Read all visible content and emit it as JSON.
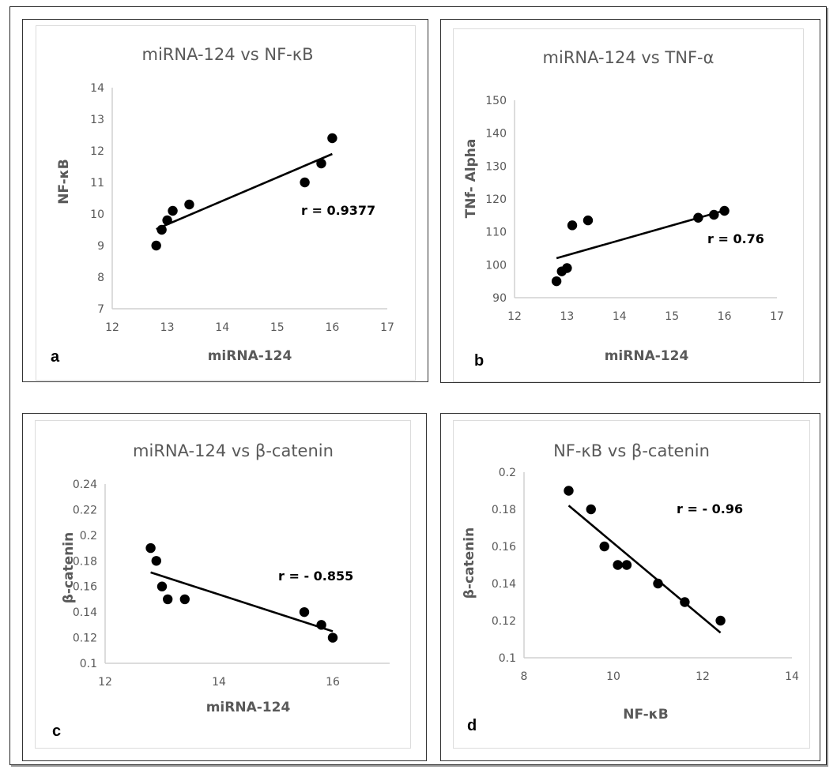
{
  "figure": {
    "colors": {
      "marker": "#000000",
      "trendline": "#000000",
      "axis": "#d0d0d0",
      "tick_text": "#595959",
      "title_text": "#595959"
    }
  },
  "chart_data": [
    {
      "panel": "a",
      "type": "scatter",
      "title": "miRNA-124 vs NF-κB",
      "xlabel": "miRNA-124",
      "ylabel": "NF-κB",
      "xlim": [
        12,
        17
      ],
      "ylim": [
        7,
        14
      ],
      "xticks": [
        12,
        13,
        14,
        15,
        16,
        17
      ],
      "yticks": [
        7,
        8,
        9,
        10,
        11,
        12,
        13,
        14
      ],
      "grid": false,
      "points": [
        {
          "x": 12.8,
          "y": 9.0
        },
        {
          "x": 12.9,
          "y": 9.5
        },
        {
          "x": 13.0,
          "y": 9.8
        },
        {
          "x": 13.1,
          "y": 10.1
        },
        {
          "x": 13.4,
          "y": 10.3
        },
        {
          "x": 15.5,
          "y": 11.0
        },
        {
          "x": 15.8,
          "y": 11.6
        },
        {
          "x": 16.0,
          "y": 12.4
        }
      ],
      "trendline": {
        "x0": 12.8,
        "y0": 9.52,
        "x1": 16.0,
        "y1": 11.9
      },
      "annotation": "r = 0.9377"
    },
    {
      "panel": "b",
      "type": "scatter",
      "title": "miRNA-124 vs TNF-α",
      "xlabel": "miRNA-124",
      "ylabel": "TNf- Alpha",
      "xlim": [
        12,
        17
      ],
      "ylim": [
        90,
        150
      ],
      "xticks": [
        12,
        13,
        14,
        15,
        16,
        17
      ],
      "yticks": [
        90,
        100,
        110,
        120,
        130,
        140,
        150
      ],
      "grid": false,
      "points": [
        {
          "x": 12.8,
          "y": 95
        },
        {
          "x": 12.9,
          "y": 98
        },
        {
          "x": 13.0,
          "y": 99
        },
        {
          "x": 13.1,
          "y": 112
        },
        {
          "x": 13.4,
          "y": 113.5
        },
        {
          "x": 15.5,
          "y": 114.3
        },
        {
          "x": 15.8,
          "y": 115.2
        },
        {
          "x": 16.0,
          "y": 116.4
        }
      ],
      "trendline": {
        "x0": 12.8,
        "y0": 102,
        "x1": 16.0,
        "y1": 116.5
      },
      "annotation": "r = 0.76"
    },
    {
      "panel": "c",
      "type": "scatter",
      "title": "miRNA-124 vs β-catenin",
      "xlabel": "miRNA-124",
      "ylabel": "β-catenin",
      "xlim": [
        12,
        17
      ],
      "ylim": [
        0.1,
        0.24
      ],
      "xticks": [
        12,
        14,
        16
      ],
      "yticks": [
        0.1,
        0.12,
        0.14,
        0.16,
        0.18,
        0.2,
        0.22,
        0.24
      ],
      "ytick_labels": [
        "0.1",
        "0.12",
        "0.14",
        "0.16",
        "0.18",
        "0.2",
        "0.22",
        "0.24"
      ],
      "grid": false,
      "points": [
        {
          "x": 12.8,
          "y": 0.19
        },
        {
          "x": 12.9,
          "y": 0.18
        },
        {
          "x": 13.0,
          "y": 0.16
        },
        {
          "x": 13.1,
          "y": 0.15
        },
        {
          "x": 13.4,
          "y": 0.15
        },
        {
          "x": 15.5,
          "y": 0.14
        },
        {
          "x": 15.8,
          "y": 0.13
        },
        {
          "x": 16.0,
          "y": 0.12
        }
      ],
      "trendline": {
        "x0": 12.8,
        "y0": 0.171,
        "x1": 16.0,
        "y1": 0.125
      },
      "annotation": "r = - 0.855"
    },
    {
      "panel": "d",
      "type": "scatter",
      "title": "NF-κB vs β-catenin",
      "xlabel": "NF-κB",
      "ylabel": "β-catenin",
      "xlim": [
        8,
        14
      ],
      "ylim": [
        0.1,
        0.2
      ],
      "xticks": [
        8,
        10,
        12,
        14
      ],
      "yticks": [
        0.1,
        0.12,
        0.14,
        0.16,
        0.18,
        0.2
      ],
      "ytick_labels": [
        "0.1",
        "0.12",
        "0.14",
        "0.16",
        "0.18",
        "0.2"
      ],
      "grid": false,
      "points": [
        {
          "x": 9.0,
          "y": 0.19
        },
        {
          "x": 9.5,
          "y": 0.18
        },
        {
          "x": 9.8,
          "y": 0.16
        },
        {
          "x": 10.1,
          "y": 0.15
        },
        {
          "x": 10.3,
          "y": 0.15
        },
        {
          "x": 11.0,
          "y": 0.14
        },
        {
          "x": 11.6,
          "y": 0.13
        },
        {
          "x": 12.4,
          "y": 0.12
        }
      ],
      "trendline": {
        "x0": 9.0,
        "y0": 0.182,
        "x1": 12.4,
        "y1": 0.1135
      },
      "annotation": "r = - 0.96"
    }
  ]
}
